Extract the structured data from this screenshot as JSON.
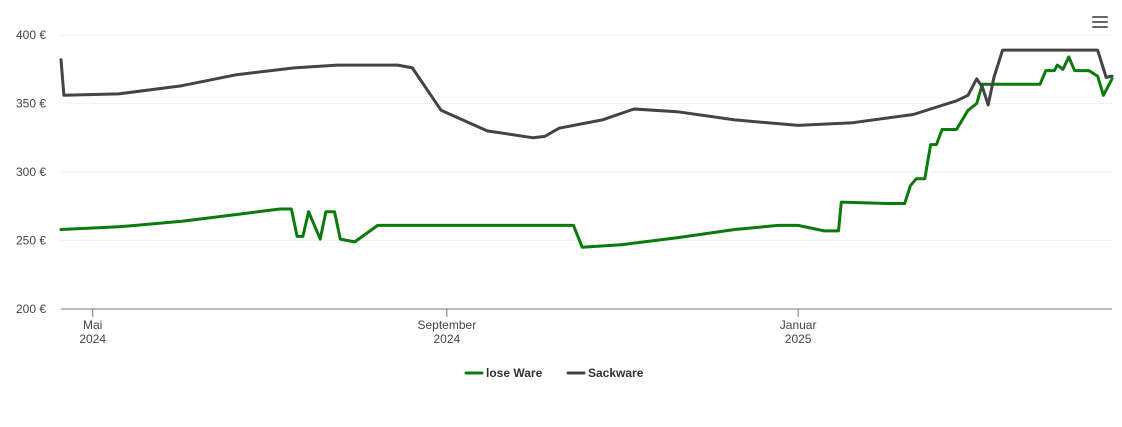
{
  "chart_data": {
    "type": "line",
    "title": "",
    "xlabel": "",
    "ylabel": "",
    "ylim": [
      200,
      400
    ],
    "y_ticks": [
      {
        "value": 200,
        "label": "200 €"
      },
      {
        "value": 250,
        "label": "250 €"
      },
      {
        "value": 300,
        "label": "300 €"
      },
      {
        "value": 350,
        "label": "350 €"
      },
      {
        "value": 400,
        "label": "400 €"
      }
    ],
    "xlim": [
      "2024-04-20",
      "2025-04-20"
    ],
    "x_ticks": [
      {
        "date": "2024-05-01",
        "line1": "Mai",
        "line2": "2024"
      },
      {
        "date": "2024-09-01",
        "line1": "September",
        "line2": "2024"
      },
      {
        "date": "2025-01-01",
        "line1": "Januar",
        "line2": "2025"
      }
    ],
    "grid": true,
    "legend_position": "bottom-center",
    "series": [
      {
        "name": "lose Ware",
        "color": "#0a7a0a",
        "points": [
          [
            "2024-04-20",
            258
          ],
          [
            "2024-05-10",
            260
          ],
          [
            "2024-06-01",
            264
          ],
          [
            "2024-06-20",
            269
          ],
          [
            "2024-07-05",
            273
          ],
          [
            "2024-07-09",
            273
          ],
          [
            "2024-07-11",
            253
          ],
          [
            "2024-07-13",
            253
          ],
          [
            "2024-07-15",
            271
          ],
          [
            "2024-07-19",
            251
          ],
          [
            "2024-07-21",
            271
          ],
          [
            "2024-07-24",
            271
          ],
          [
            "2024-07-26",
            251
          ],
          [
            "2024-07-31",
            249
          ],
          [
            "2024-08-08",
            261
          ],
          [
            "2024-10-15",
            261
          ],
          [
            "2024-10-18",
            245
          ],
          [
            "2024-11-01",
            247
          ],
          [
            "2024-11-20",
            252
          ],
          [
            "2024-12-10",
            258
          ],
          [
            "2024-12-25",
            261
          ],
          [
            "2025-01-01",
            261
          ],
          [
            "2025-01-10",
            257
          ],
          [
            "2025-01-15",
            257
          ],
          [
            "2025-01-16",
            278
          ],
          [
            "2025-02-01",
            277
          ],
          [
            "2025-02-07",
            277
          ],
          [
            "2025-02-09",
            290
          ],
          [
            "2025-02-11",
            295
          ],
          [
            "2025-02-14",
            295
          ],
          [
            "2025-02-16",
            320
          ],
          [
            "2025-02-18",
            320
          ],
          [
            "2025-02-20",
            331
          ],
          [
            "2025-02-25",
            331
          ],
          [
            "2025-03-01",
            345
          ],
          [
            "2025-03-04",
            350
          ],
          [
            "2025-03-06",
            364
          ],
          [
            "2025-03-20",
            364
          ],
          [
            "2025-03-26",
            364
          ],
          [
            "2025-03-28",
            374
          ],
          [
            "2025-03-31",
            374
          ],
          [
            "2025-04-01",
            378
          ],
          [
            "2025-04-03",
            375
          ],
          [
            "2025-04-05",
            384
          ],
          [
            "2025-04-07",
            374
          ],
          [
            "2025-04-12",
            374
          ],
          [
            "2025-04-15",
            370
          ],
          [
            "2025-04-17",
            356
          ],
          [
            "2025-04-20",
            368
          ]
        ]
      },
      {
        "name": "Sackware",
        "color": "#434348",
        "points": [
          [
            "2024-04-20",
            382
          ],
          [
            "2024-04-21",
            356
          ],
          [
            "2024-05-10",
            357
          ],
          [
            "2024-06-01",
            363
          ],
          [
            "2024-06-20",
            371
          ],
          [
            "2024-07-10",
            376
          ],
          [
            "2024-07-25",
            378
          ],
          [
            "2024-08-15",
            378
          ],
          [
            "2024-08-20",
            376
          ],
          [
            "2024-08-30",
            345
          ],
          [
            "2024-09-15",
            330
          ],
          [
            "2024-10-01",
            325
          ],
          [
            "2024-10-05",
            326
          ],
          [
            "2024-10-10",
            332
          ],
          [
            "2024-10-25",
            338
          ],
          [
            "2024-11-05",
            346
          ],
          [
            "2024-11-20",
            344
          ],
          [
            "2024-12-10",
            338
          ],
          [
            "2025-01-01",
            334
          ],
          [
            "2025-01-20",
            336
          ],
          [
            "2025-02-10",
            342
          ],
          [
            "2025-02-25",
            352
          ],
          [
            "2025-03-01",
            356
          ],
          [
            "2025-03-04",
            368
          ],
          [
            "2025-03-06",
            362
          ],
          [
            "2025-03-08",
            349
          ],
          [
            "2025-03-10",
            369
          ],
          [
            "2025-03-13",
            389
          ],
          [
            "2025-03-20",
            389
          ],
          [
            "2025-04-07",
            389
          ],
          [
            "2025-04-12",
            389
          ],
          [
            "2025-04-15",
            389
          ],
          [
            "2025-04-18",
            369
          ],
          [
            "2025-04-20",
            370
          ]
        ]
      }
    ]
  }
}
